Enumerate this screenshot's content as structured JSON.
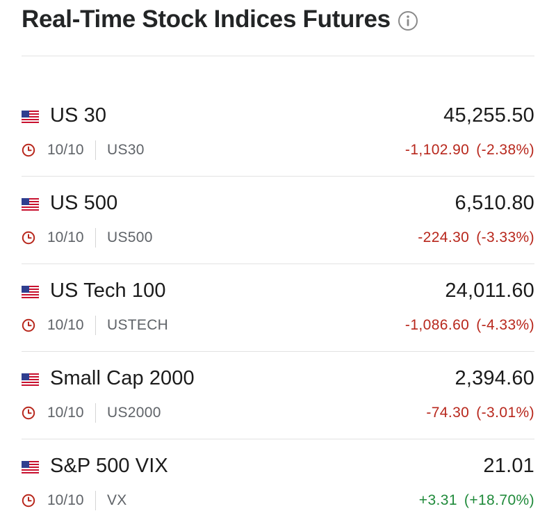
{
  "header": {
    "title": "Real-Time Stock Indices Futures",
    "info_icon": "info-circle-icon"
  },
  "colors": {
    "negative": "#b8271c",
    "positive": "#1f8a3a",
    "text_primary": "#1b1b1b",
    "text_secondary": "#5f6368"
  },
  "indices": [
    {
      "name": "US 30",
      "price": "45,255.50",
      "date": "10/10",
      "symbol": "US30",
      "change": "-1,102.90",
      "change_pct": "(-2.38%)",
      "direction": "down",
      "flag_icon": "us-flag-icon",
      "time_icon": "clock-icon"
    },
    {
      "name": "US 500",
      "price": "6,510.80",
      "date": "10/10",
      "symbol": "US500",
      "change": "-224.30",
      "change_pct": "(-3.33%)",
      "direction": "down",
      "flag_icon": "us-flag-icon",
      "time_icon": "clock-icon"
    },
    {
      "name": "US Tech 100",
      "price": "24,011.60",
      "date": "10/10",
      "symbol": "USTECH",
      "change": "-1,086.60",
      "change_pct": "(-4.33%)",
      "direction": "down",
      "flag_icon": "us-flag-icon",
      "time_icon": "clock-icon"
    },
    {
      "name": "Small Cap 2000",
      "price": "2,394.60",
      "date": "10/10",
      "symbol": "US2000",
      "change": "-74.30",
      "change_pct": "(-3.01%)",
      "direction": "down",
      "flag_icon": "us-flag-icon",
      "time_icon": "clock-icon"
    },
    {
      "name": "S&P 500 VIX",
      "price": "21.01",
      "date": "10/10",
      "symbol": "VX",
      "change": "+3.31",
      "change_pct": "(+18.70%)",
      "direction": "up",
      "flag_icon": "us-flag-icon",
      "time_icon": "clock-icon"
    }
  ]
}
